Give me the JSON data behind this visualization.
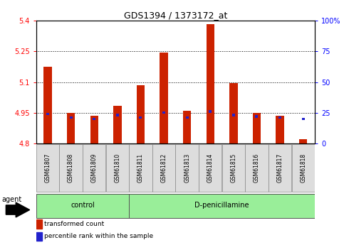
{
  "title": "GDS1394 / 1373172_at",
  "samples": [
    "GSM61807",
    "GSM61808",
    "GSM61809",
    "GSM61810",
    "GSM61811",
    "GSM61812",
    "GSM61813",
    "GSM61814",
    "GSM61815",
    "GSM61816",
    "GSM61817",
    "GSM61818"
  ],
  "transformed_count": [
    5.175,
    4.95,
    4.935,
    4.985,
    5.085,
    5.245,
    4.96,
    5.385,
    5.095,
    4.95,
    4.935,
    4.82
  ],
  "percentile_rank": [
    24,
    21,
    20,
    23,
    21,
    25,
    21,
    26,
    23,
    22,
    21,
    20
  ],
  "bar_bottom": 4.8,
  "ylim_left": [
    4.8,
    5.4
  ],
  "ylim_right": [
    0,
    100
  ],
  "yticks_left": [
    4.8,
    4.95,
    5.1,
    5.25,
    5.4
  ],
  "ytick_labels_left": [
    "4.8",
    "4.95",
    "5.1",
    "5.25",
    "5.4"
  ],
  "yticks_right": [
    0,
    25,
    50,
    75,
    100
  ],
  "ytick_labels_right": [
    "0",
    "25",
    "50",
    "75",
    "100%"
  ],
  "grid_values": [
    4.95,
    5.1,
    5.25
  ],
  "bar_color_red": "#cc2200",
  "bar_color_blue": "#2222cc",
  "group_control": [
    0,
    1,
    2,
    3
  ],
  "group_dpenicillamine": [
    4,
    5,
    6,
    7,
    8,
    9,
    10,
    11
  ],
  "group_control_label": "control",
  "group_dpenicillamine_label": "D-penicillamine",
  "agent_label": "agent",
  "legend_red_label": "transformed count",
  "legend_blue_label": "percentile rank within the sample",
  "group_bg_color": "#99ee99",
  "tick_label_bg": "#dddddd",
  "red_bar_width": 0.35,
  "blue_bar_width": 0.12
}
